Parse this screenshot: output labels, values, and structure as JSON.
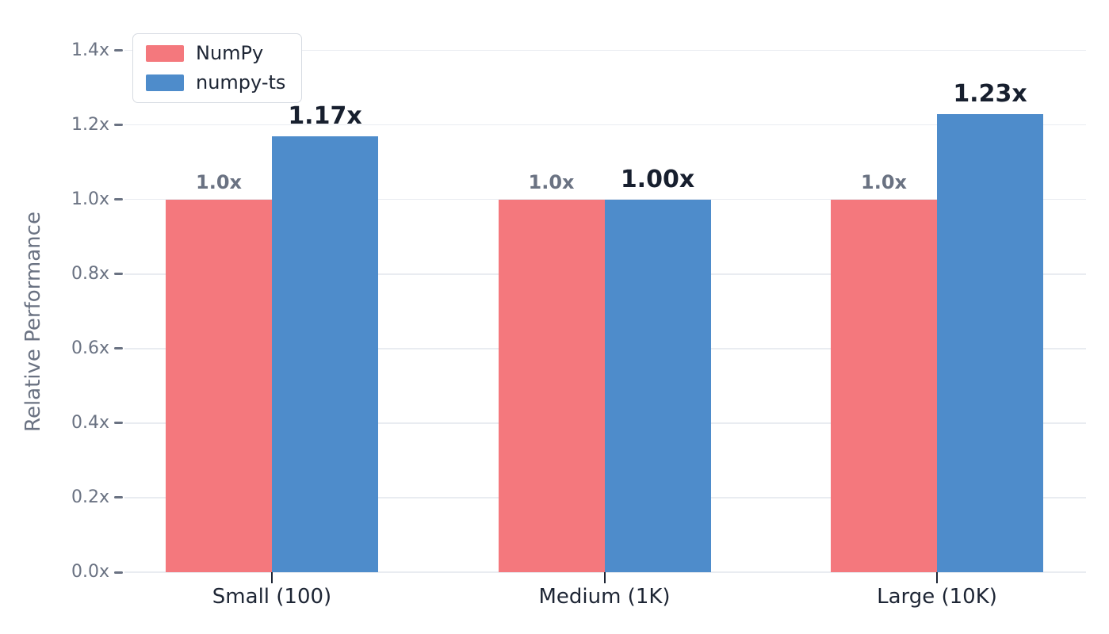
{
  "chart_data": {
    "type": "bar",
    "title": "",
    "xlabel": "",
    "ylabel": "Relative Performance",
    "categories": [
      "Small (100)",
      "Medium (1K)",
      "Large (10K)"
    ],
    "series": [
      {
        "name": "NumPy",
        "color": "#f4787d",
        "values": [
          1.0,
          1.0,
          1.0
        ],
        "bar_labels": [
          "1.0x",
          "1.0x",
          "1.0x"
        ],
        "label_style": "muted"
      },
      {
        "name": "numpy-ts",
        "color": "#4e8ccb",
        "values": [
          1.17,
          1.0,
          1.23
        ],
        "bar_labels": [
          "1.17x",
          "1.00x",
          "1.23x"
        ],
        "label_style": "emphasis"
      }
    ],
    "ylim": [
      0,
      1.45
    ],
    "yticks": {
      "values": [
        0.0,
        0.2,
        0.4,
        0.6,
        0.8,
        1.0,
        1.2,
        1.4
      ],
      "labels": [
        "0.0x",
        "0.2x",
        "0.4x",
        "0.6x",
        "0.8x",
        "1.0x",
        "1.2x",
        "1.4x"
      ]
    },
    "grid": true,
    "legend_position": "upper-left"
  },
  "colors": {
    "background": "#ffffff",
    "gridline": "#e9ecf1",
    "tick_text": "#6a7282",
    "axis_text": "#1d2534",
    "emphasis_text": "#171f2e",
    "legend_border": "#d7dbe2"
  }
}
